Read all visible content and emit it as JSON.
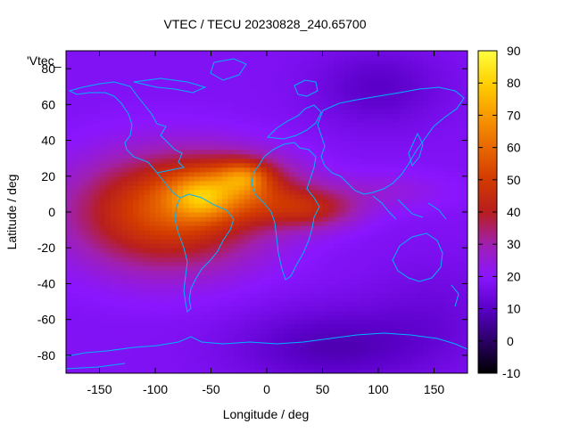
{
  "chart_data": {
    "type": "heatmap",
    "title": "VTEC / TECU 20230828_240.65700",
    "xlabel": "Longitude / deg",
    "ylabel": "Latitude / deg",
    "xlim": [
      -180,
      180
    ],
    "ylim": [
      -90,
      90
    ],
    "xticks": [
      -150,
      -100,
      -50,
      0,
      50,
      100,
      150
    ],
    "xtick_labels": [
      "-150",
      "-100",
      "-50",
      "0",
      "50",
      "100",
      "150"
    ],
    "yticks": [
      80,
      60,
      40,
      20,
      0,
      -20,
      -40,
      -60,
      -80
    ],
    "ytick_labels": [
      "80",
      "60",
      "40",
      "20",
      "0",
      "-20",
      "-40",
      "-60",
      "-80"
    ],
    "colorbar": {
      "range": [
        -10,
        90
      ],
      "ticks": [
        90,
        80,
        70,
        60,
        50,
        40,
        30,
        20,
        10,
        0,
        -10
      ],
      "tick_labels": [
        "90",
        "80",
        "70",
        "60",
        "50",
        "40",
        "30",
        "20",
        "10",
        "0",
        "-10"
      ],
      "stops": [
        {
          "value": -10,
          "color": "#000000"
        },
        {
          "value": 0,
          "color": "#2a0066"
        },
        {
          "value": 10,
          "color": "#5a00c8"
        },
        {
          "value": 20,
          "color": "#8a16ff"
        },
        {
          "value": 30,
          "color": "#a020b0"
        },
        {
          "value": 40,
          "color": "#b81e1e"
        },
        {
          "value": 50,
          "color": "#d23a00"
        },
        {
          "value": 60,
          "color": "#e86800"
        },
        {
          "value": 70,
          "color": "#f89a00"
        },
        {
          "value": 80,
          "color": "#ffd000"
        },
        {
          "value": 90,
          "color": "#ffff40"
        }
      ]
    },
    "legend_entry": "'Vtec_",
    "coastline_color": "#00b4ff",
    "field": {
      "background_value": 18,
      "blobs": [
        {
          "lon": -90,
          "lat": 0,
          "sx": 60,
          "sy": 22,
          "amp": 36
        },
        {
          "lon": -30,
          "lat": 14,
          "sx": 40,
          "sy": 12,
          "amp": 26
        },
        {
          "lon": -20,
          "lat": 20,
          "sx": 15,
          "sy": 6,
          "amp": 18
        },
        {
          "lon": -60,
          "lat": 8,
          "sx": 18,
          "sy": 8,
          "amp": 16
        },
        {
          "lon": 40,
          "lat": 2,
          "sx": 30,
          "sy": 8,
          "amp": 20
        },
        {
          "lon": 110,
          "lat": 12,
          "sx": 40,
          "sy": 8,
          "amp": 6
        },
        {
          "lon": 100,
          "lat": 70,
          "sx": 40,
          "sy": 15,
          "amp": -8
        },
        {
          "lon": 60,
          "lat": -75,
          "sx": 60,
          "sy": 15,
          "amp": -10
        },
        {
          "lon": 150,
          "lat": -55,
          "sx": 40,
          "sy": 20,
          "amp": -4
        }
      ]
    }
  }
}
